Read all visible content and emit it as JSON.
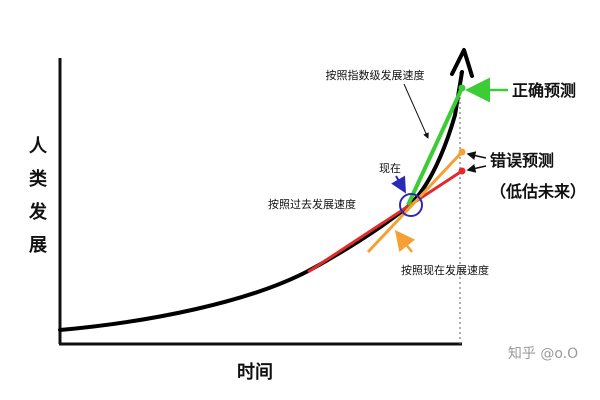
{
  "axes": {
    "y_label": [
      "人",
      "类",
      "发",
      "展"
    ],
    "x_label": "时间"
  },
  "annotations": {
    "exponential_rate": "按照指数级发展速度",
    "correct_prediction": "正确预测",
    "now": "现在",
    "wrong_prediction": "错误预测",
    "underestimate": "（低估未来）",
    "past_rate": "按照过去发展速度",
    "current_rate": "按照现在发展速度"
  },
  "watermark": "知乎 @o.O",
  "colors": {
    "curve": "#000000",
    "green": "#3ccc35",
    "orange": "#f4a035",
    "red": "#e22a2a",
    "circle": "#2a2ab5",
    "arrow_blue": "#2a2ab5"
  }
}
